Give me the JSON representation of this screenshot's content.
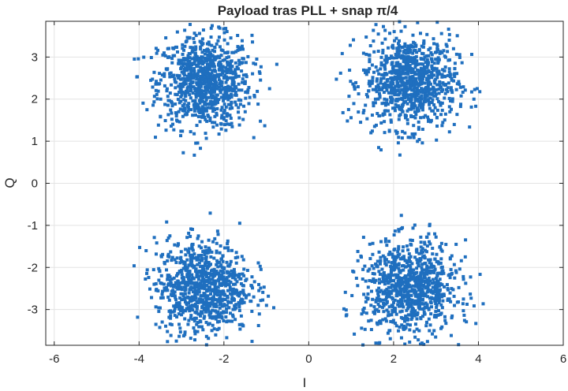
{
  "chart_data": {
    "type": "scatter",
    "title": "Payload tras PLL + snap π/4",
    "xlabel": "I",
    "ylabel": "Q",
    "xlim": [
      -6.2,
      6.0
    ],
    "ylim": [
      -3.85,
      3.85
    ],
    "xticks": [
      -6,
      -4,
      -2,
      0,
      2,
      4,
      6
    ],
    "yticks": [
      -3,
      -2,
      -1,
      0,
      1,
      2,
      3
    ],
    "xtick_labels": [
      "-6",
      "-4",
      "-2",
      "0",
      "2",
      "4",
      "6"
    ],
    "ytick_labels": [
      "-3",
      "-2",
      "-1",
      "0",
      "1",
      "2",
      "3"
    ],
    "grid": true,
    "marker_color": "#1f6fbf",
    "marker": "square",
    "series": [
      {
        "clusters": [
          {
            "center": [
              -2.45,
              2.4
            ],
            "spread": 0.55,
            "points": 900
          },
          {
            "center": [
              2.4,
              2.4
            ],
            "spread": 0.55,
            "points": 900
          },
          {
            "center": [
              -2.5,
              -2.45
            ],
            "spread": 0.55,
            "points": 900
          },
          {
            "center": [
              2.4,
              -2.5
            ],
            "spread": 0.55,
            "points": 900
          }
        ]
      }
    ]
  }
}
